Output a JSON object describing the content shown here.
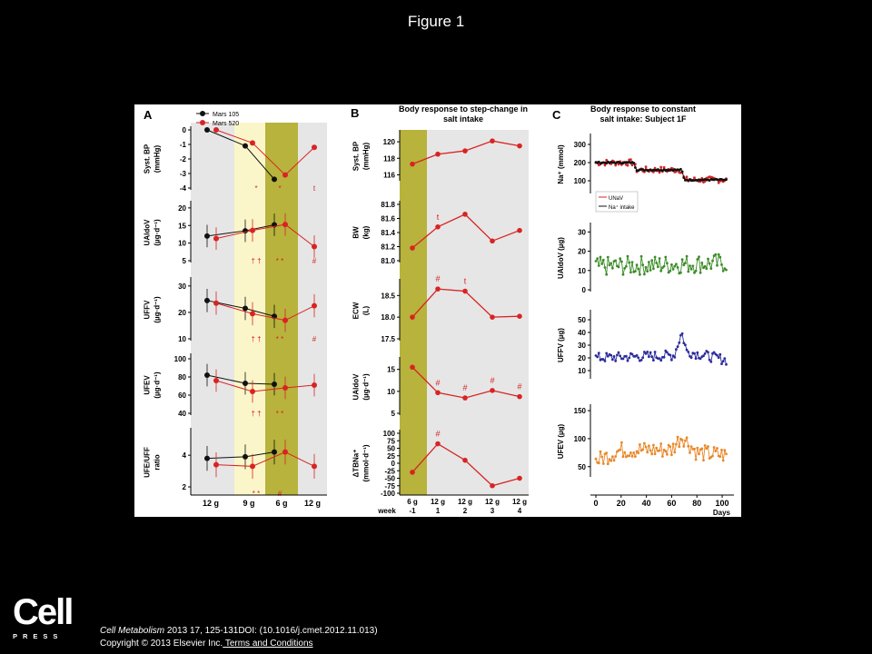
{
  "slide": {
    "title": "Figure 1",
    "logo_main": "Cell",
    "logo_sub": "PRESS",
    "citation_journal": "Cell Metabolism",
    "citation_rest": " 2013 17, 125-131DOI: (10.1016/j.cmet.2012.11.013)",
    "copyright": "Copyright © 2013 Elsevier Inc.",
    "terms_link": " Terms and Conditions"
  },
  "colors": {
    "red": "#d92323",
    "black": "#111111",
    "green": "#3c8c28",
    "blue": "#2b2b9c",
    "orange": "#e8882a",
    "gray_band": "#e6e6e6",
    "yellow_band": "#fbf6c9",
    "olive_band": "#b7b33c"
  },
  "chart_data": [
    {
      "panel": "A",
      "type": "line",
      "legend": [
        "Mars 105",
        "Mars 520"
      ],
      "x_labels": [
        "12 g",
        "9 g",
        "6 g",
        "12 g"
      ],
      "subplots": [
        {
          "ylabel": "Syst. BP\n(mmHg)",
          "ticks": [
            "0",
            "-1",
            "-2",
            "-3",
            "-4"
          ],
          "ylim": [
            -4,
            0
          ],
          "series": [
            {
              "name": "Mars 105",
              "values": [
                0,
                -1.1,
                -3.4
              ]
            },
            {
              "name": "Mars 520",
              "values": [
                0,
                -0.9,
                -3.1,
                -1.2
              ]
            }
          ],
          "marks": [
            "*",
            "*",
            "t"
          ]
        },
        {
          "ylabel": "UAldoV\n(µg·d⁻¹)",
          "ticks": [
            "20",
            "15",
            "10",
            "5"
          ],
          "ylim": [
            5,
            21
          ],
          "series": [
            {
              "name": "Mars 105",
              "values": [
                12,
                13.5,
                15.2
              ]
            },
            {
              "name": "Mars 520",
              "values": [
                11.3,
                13.6,
                15.3,
                9
              ]
            }
          ],
          "marks": [
            "† †",
            "* *",
            "#"
          ]
        },
        {
          "ylabel": "UFFV\n(µg·d⁻¹)",
          "ticks": [
            "30",
            "20",
            "10"
          ],
          "ylim": [
            10,
            32
          ],
          "series": [
            {
              "name": "Mars 105",
              "values": [
                24.5,
                21.5,
                18.5
              ]
            },
            {
              "name": "Mars 520",
              "values": [
                23.5,
                19.5,
                17,
                22.5
              ]
            }
          ],
          "marks": [
            "† †",
            "* *",
            "#"
          ]
        },
        {
          "ylabel": "UFEV\n(µg·d⁻¹)",
          "ticks": [
            "100",
            "80",
            "60",
            "40"
          ],
          "ylim": [
            40,
            102
          ],
          "series": [
            {
              "name": "Mars 105",
              "values": [
                82,
                73,
                72
              ]
            },
            {
              "name": "Mars 520",
              "values": [
                76,
                64,
                68,
                71
              ]
            }
          ],
          "marks": [
            "† †",
            "* *"
          ]
        },
        {
          "ylabel": "UFE/UFF\nratio",
          "ticks": [
            "4",
            "2"
          ],
          "ylim": [
            1.6,
            5.5
          ],
          "series": [
            {
              "name": "Mars 105",
              "values": [
                3.8,
                3.9,
                4.2
              ]
            },
            {
              "name": "Mars 520",
              "values": [
                3.4,
                3.3,
                4.2,
                3.3
              ]
            }
          ],
          "marks": [
            "* *",
            "#"
          ]
        }
      ]
    },
    {
      "panel": "B",
      "type": "line",
      "title": "Body response to step-change in salt intake",
      "x_top": [
        "6 g",
        "12 g",
        "12 g",
        "12 g",
        "12 g"
      ],
      "x_bottom_label": "week",
      "x_bottom": [
        "-1",
        "1",
        "2",
        "3",
        "4"
      ],
      "subplots": [
        {
          "ylabel": "Syst. BP\n(mmHg)",
          "ticks": [
            "120",
            "118",
            "116"
          ],
          "ylim": [
            115.5,
            121
          ],
          "values": [
            117.3,
            118.5,
            118.9,
            120.1,
            119.5
          ],
          "marks": []
        },
        {
          "ylabel": "BW\n(kg)",
          "ticks": [
            "81.8",
            "81.6",
            "81.4",
            "81.2",
            "81.0"
          ],
          "ylim": [
            81.0,
            81.8
          ],
          "values": [
            81.18,
            81.48,
            81.66,
            81.28,
            81.43
          ],
          "marks": [
            "t"
          ]
        },
        {
          "ylabel": "ECW\n(L)",
          "ticks": [
            "18.5",
            "18.0",
            "17.5"
          ],
          "ylim": [
            17.5,
            18.8
          ],
          "values": [
            18.0,
            18.65,
            18.6,
            18.0,
            18.02
          ],
          "marks": [
            "#",
            "t"
          ]
        },
        {
          "ylabel": "UAldoV\n(µg·d⁻¹)",
          "ticks": [
            "15",
            "10",
            "5"
          ],
          "ylim": [
            5,
            17
          ],
          "values": [
            15.5,
            9.7,
            8.5,
            10.2,
            8.8
          ],
          "marks": [
            "#",
            "#",
            "#",
            "#"
          ]
        },
        {
          "ylabel": "ΔTBNa⁺\n(mmol·d⁻¹)",
          "ticks": [
            "100",
            "75",
            "50",
            "25",
            "0",
            "-25",
            "-50",
            "-75",
            "-100"
          ],
          "ylim": [
            -100,
            100
          ],
          "values": [
            -30,
            65,
            10,
            -75,
            -50
          ],
          "marks": [
            "#"
          ]
        }
      ]
    },
    {
      "panel": "C",
      "type": "line",
      "title": "Body response to constant salt intake: Subject 1F",
      "xlabel": "Days",
      "x_ticks": [
        "0",
        "20",
        "40",
        "60",
        "80",
        "100"
      ],
      "xlim": [
        0,
        105
      ],
      "subplots": [
        {
          "ylabel": "Na⁺ (mmol)",
          "ticks": [
            "300",
            "200",
            "100"
          ],
          "ylim": [
            40,
            340
          ],
          "series": [
            {
              "name": "UNaV",
              "color": "red",
              "mean": [
                [
                  0,
                  200
                ],
                [
                  30,
                  200
                ],
                [
                  32,
                  160
                ],
                [
                  68,
                  160
                ],
                [
                  70,
                  105
                ],
                [
                  105,
                  105
                ]
              ],
              "noise": [
                35,
                30,
                15
              ]
            },
            {
              "name": "Na⁺ intake",
              "color": "black",
              "mean": [
                [
                  0,
                  200
                ],
                [
                  30,
                  200
                ],
                [
                  32,
                  160
                ],
                [
                  68,
                  160
                ],
                [
                  70,
                  105
                ],
                [
                  105,
                  105
                ]
              ],
              "noise": [
                8,
                6,
                4
              ]
            }
          ]
        },
        {
          "ylabel": "UAldoV (µg)",
          "ticks": [
            "30",
            "20",
            "10",
            "0"
          ],
          "ylim": [
            0,
            33
          ],
          "series": [
            {
              "name": "UAldoV",
              "color": "green",
              "mean": [
                [
                  0,
                  12
                ],
                [
                  105,
                  14
                ]
              ],
              "noise": [
                10,
                10,
                10
              ]
            }
          ]
        },
        {
          "ylabel": "UFFV (µg)",
          "ticks": [
            "50",
            "40",
            "30",
            "20",
            "10"
          ],
          "ylim": [
            5,
            55
          ],
          "series": [
            {
              "name": "UFFV",
              "color": "blue",
              "mean": [
                [
                  0,
                  20
                ],
                [
                  62,
                  22
                ],
                [
                  68,
                  40
                ],
                [
                  72,
                  25
                ],
                [
                  105,
                  18
                ]
              ],
              "noise": [
                8,
                8,
                8
              ]
            }
          ]
        },
        {
          "ylabel": "UFEV (µg)",
          "ticks": [
            "150",
            "100",
            "50"
          ],
          "ylim": [
            35,
            155
          ],
          "series": [
            {
              "name": "UFEV",
              "color": "orange",
              "mean": [
                [
                  0,
                  60
                ],
                [
                  20,
                  80
                ],
                [
                  60,
                  80
                ],
                [
                  68,
                  105
                ],
                [
                  80,
                  75
                ],
                [
                  105,
                  70
                ]
              ],
              "noise": [
                30,
                30,
                30
              ]
            }
          ]
        }
      ]
    }
  ]
}
